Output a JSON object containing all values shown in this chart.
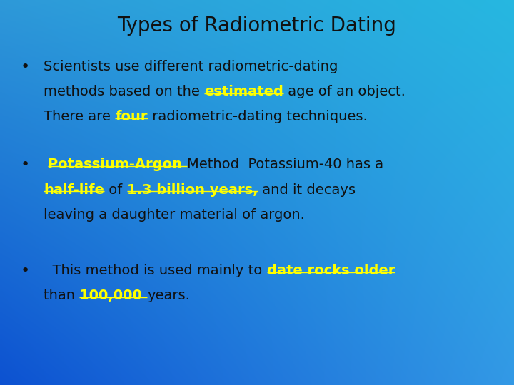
{
  "title": "Types of Radiometric Dating",
  "title_color": "#111111",
  "title_fontsize": 20,
  "bullet1_line1": "Scientists use different radiometric-dating",
  "bullet1_line2_before": "methods based on the ",
  "bullet1_line2_highlight": "estimated",
  "bullet1_line2_after": " age of an object.",
  "bullet1_line3_before": "There are ",
  "bullet1_line3_highlight": "four",
  "bullet1_line3_after": " radiometric-dating techniques.",
  "bullet2_line1_yellow": "Potassium-Argon ",
  "bullet2_line1_after": "Method  Potassium-40 has a",
  "bullet2_line2_yellow1": "half-life",
  "bullet2_line2_mid": " of ",
  "bullet2_line2_yellow2": "1.3 billion years,",
  "bullet2_line2_after": " and it decays",
  "bullet2_line3": "leaving a daughter material of argon.",
  "bullet3_line1_before": "  This method is used mainly to ",
  "bullet3_line1_yellow": "date rocks older",
  "bullet3_line2_before": "than ",
  "bullet3_line2_yellow": "100,000 ",
  "bullet3_line2_after": "years.",
  "normal_color": "#111111",
  "yellow_color": "#ffff00",
  "body_fontsize": 14,
  "fig_width": 7.2,
  "fig_height": 5.4,
  "bg_topleft": [
    0.18,
    0.6,
    0.85
  ],
  "bg_topright": [
    0.15,
    0.72,
    0.88
  ],
  "bg_bottomleft": [
    0.05,
    0.32,
    0.82
  ],
  "bg_bottomright": [
    0.2,
    0.6,
    0.9
  ]
}
